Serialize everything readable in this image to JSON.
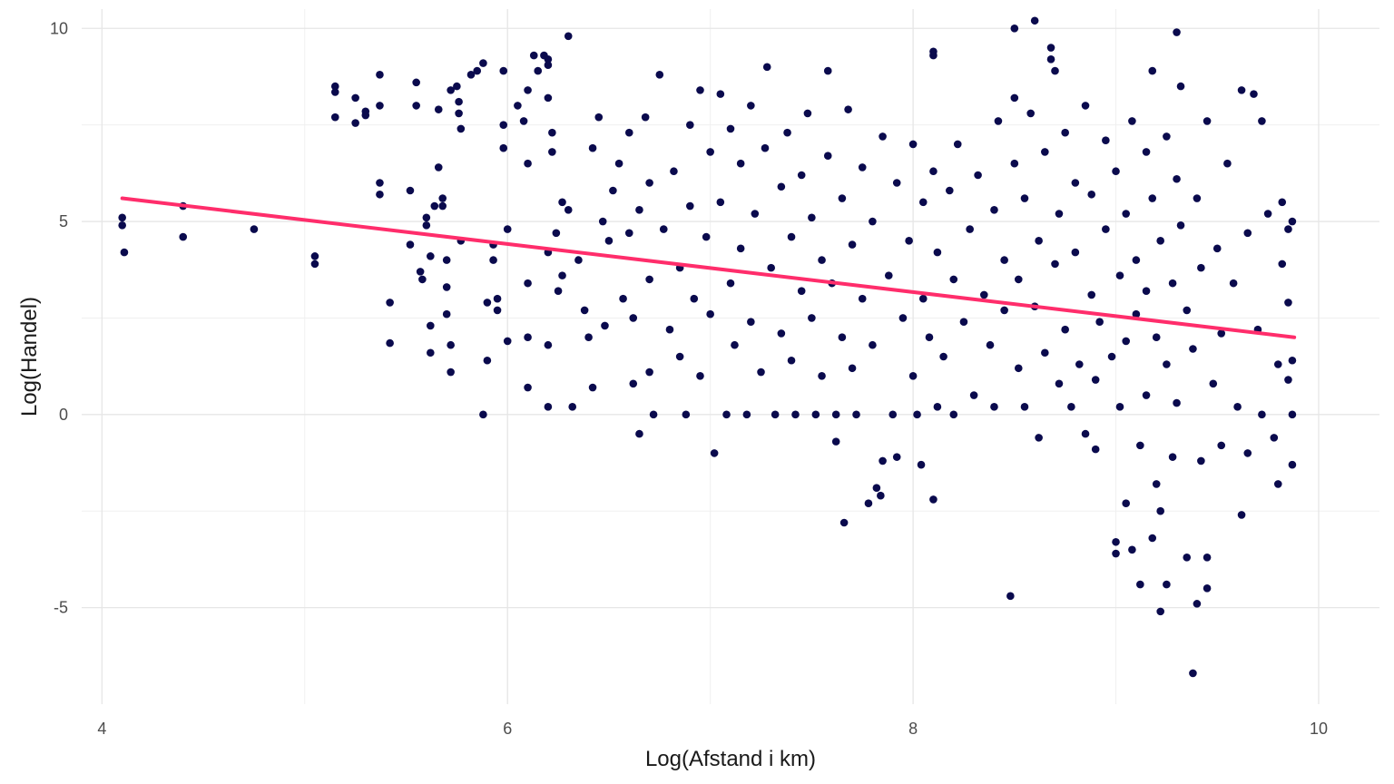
{
  "chart_data": {
    "type": "scatter",
    "title": "",
    "xlabel": "Log(Afstand i km)",
    "ylabel": "Log(Handel)",
    "xlim": [
      3.9,
      10.3
    ],
    "ylim": [
      -7.5,
      10.5
    ],
    "x_ticks": [
      4,
      6,
      8,
      10
    ],
    "y_ticks": [
      -5,
      0,
      5,
      10
    ],
    "x_tick_labels": [
      "4",
      "6",
      "8",
      "10"
    ],
    "y_tick_labels": [
      "-5",
      "0",
      "5",
      "10"
    ],
    "grid": true,
    "legend": "none",
    "point_color": "#0a0a4d",
    "fit_color": "#ff2d6b",
    "fit_line": {
      "x": [
        4.1,
        9.88
      ],
      "y": [
        5.6,
        2.0
      ]
    },
    "points": [
      [
        4.1,
        5.1
      ],
      [
        4.1,
        4.9
      ],
      [
        4.11,
        4.2
      ],
      [
        4.4,
        5.4
      ],
      [
        4.4,
        4.6
      ],
      [
        4.75,
        4.8
      ],
      [
        5.05,
        4.1
      ],
      [
        5.05,
        3.9
      ],
      [
        5.15,
        8.5
      ],
      [
        5.15,
        8.35
      ],
      [
        5.15,
        7.7
      ],
      [
        5.25,
        8.2
      ],
      [
        5.25,
        7.55
      ],
      [
        5.3,
        7.75
      ],
      [
        5.3,
        7.85
      ],
      [
        5.37,
        8.8
      ],
      [
        5.37,
        8.0
      ],
      [
        5.37,
        6.0
      ],
      [
        5.37,
        5.7
      ],
      [
        5.42,
        2.9
      ],
      [
        5.42,
        1.85
      ],
      [
        5.52,
        5.8
      ],
      [
        5.52,
        4.4
      ],
      [
        5.55,
        8.6
      ],
      [
        5.55,
        8.0
      ],
      [
        5.57,
        3.7
      ],
      [
        5.58,
        3.5
      ],
      [
        5.6,
        5.1
      ],
      [
        5.6,
        4.9
      ],
      [
        5.62,
        4.1
      ],
      [
        5.62,
        2.3
      ],
      [
        5.62,
        1.6
      ],
      [
        5.64,
        5.4
      ],
      [
        5.66,
        7.9
      ],
      [
        5.66,
        6.4
      ],
      [
        5.68,
        5.6
      ],
      [
        5.68,
        5.4
      ],
      [
        5.7,
        3.3
      ],
      [
        5.7,
        2.6
      ],
      [
        5.7,
        4.0
      ],
      [
        5.72,
        1.8
      ],
      [
        5.72,
        1.1
      ],
      [
        5.72,
        8.4
      ],
      [
        5.75,
        8.5
      ],
      [
        5.76,
        7.8
      ],
      [
        5.76,
        8.1
      ],
      [
        5.77,
        7.4
      ],
      [
        5.77,
        4.5
      ],
      [
        5.82,
        8.8
      ],
      [
        5.85,
        8.9
      ],
      [
        5.88,
        9.1
      ],
      [
        5.88,
        0.0
      ],
      [
        5.9,
        2.9
      ],
      [
        5.9,
        1.4
      ],
      [
        5.93,
        4.4
      ],
      [
        5.93,
        4.0
      ],
      [
        5.95,
        3.0
      ],
      [
        5.95,
        2.7
      ],
      [
        5.98,
        8.9
      ],
      [
        5.98,
        6.9
      ],
      [
        5.98,
        7.5
      ],
      [
        6.0,
        4.8
      ],
      [
        6.0,
        1.9
      ],
      [
        6.05,
        8.0
      ],
      [
        6.08,
        7.6
      ],
      [
        6.1,
        8.4
      ],
      [
        6.1,
        6.5
      ],
      [
        6.1,
        3.4
      ],
      [
        6.1,
        2.0
      ],
      [
        6.1,
        0.7
      ],
      [
        6.13,
        9.3
      ],
      [
        6.15,
        8.9
      ],
      [
        6.18,
        9.3
      ],
      [
        6.2,
        9.2
      ],
      [
        6.2,
        9.05
      ],
      [
        6.2,
        8.2
      ],
      [
        6.2,
        4.2
      ],
      [
        6.2,
        1.8
      ],
      [
        6.2,
        0.2
      ],
      [
        6.22,
        7.3
      ],
      [
        6.22,
        6.8
      ],
      [
        6.24,
        4.7
      ],
      [
        6.25,
        3.2
      ],
      [
        6.27,
        5.5
      ],
      [
        6.27,
        3.6
      ],
      [
        6.3,
        9.8
      ],
      [
        6.3,
        5.3
      ],
      [
        6.32,
        0.2
      ],
      [
        6.35,
        4.0
      ],
      [
        6.38,
        2.7
      ],
      [
        6.4,
        2.0
      ],
      [
        6.42,
        6.9
      ],
      [
        6.42,
        0.7
      ],
      [
        6.45,
        7.7
      ],
      [
        6.47,
        5.0
      ],
      [
        6.48,
        2.3
      ],
      [
        6.5,
        4.5
      ],
      [
        6.52,
        5.8
      ],
      [
        6.55,
        6.5
      ],
      [
        6.57,
        3.0
      ],
      [
        6.6,
        7.3
      ],
      [
        6.6,
        4.7
      ],
      [
        6.62,
        2.5
      ],
      [
        6.62,
        0.8
      ],
      [
        6.65,
        5.3
      ],
      [
        6.65,
        -0.5
      ],
      [
        6.68,
        7.7
      ],
      [
        6.7,
        6.0
      ],
      [
        6.7,
        3.5
      ],
      [
        6.7,
        1.1
      ],
      [
        6.72,
        0.0
      ],
      [
        6.75,
        8.8
      ],
      [
        6.77,
        4.8
      ],
      [
        6.8,
        2.2
      ],
      [
        6.82,
        6.3
      ],
      [
        6.85,
        3.8
      ],
      [
        6.85,
        1.5
      ],
      [
        6.88,
        0.0
      ],
      [
        6.9,
        7.5
      ],
      [
        6.9,
        5.4
      ],
      [
        6.92,
        3.0
      ],
      [
        6.95,
        8.4
      ],
      [
        6.95,
        1.0
      ],
      [
        6.98,
        4.6
      ],
      [
        7.0,
        6.8
      ],
      [
        7.0,
        2.6
      ],
      [
        7.02,
        -1.0
      ],
      [
        7.05,
        8.3
      ],
      [
        7.05,
        5.5
      ],
      [
        7.08,
        0.0
      ],
      [
        7.1,
        7.4
      ],
      [
        7.1,
        3.4
      ],
      [
        7.12,
        1.8
      ],
      [
        7.15,
        6.5
      ],
      [
        7.15,
        4.3
      ],
      [
        7.18,
        0.0
      ],
      [
        7.2,
        8.0
      ],
      [
        7.2,
        2.4
      ],
      [
        7.22,
        5.2
      ],
      [
        7.25,
        1.1
      ],
      [
        7.27,
        6.9
      ],
      [
        7.28,
        9.0
      ],
      [
        7.3,
        3.8
      ],
      [
        7.32,
        0.0
      ],
      [
        7.35,
        5.9
      ],
      [
        7.35,
        2.1
      ],
      [
        7.38,
        7.3
      ],
      [
        7.4,
        4.6
      ],
      [
        7.4,
        1.4
      ],
      [
        7.42,
        0.0
      ],
      [
        7.45,
        6.2
      ],
      [
        7.45,
        3.2
      ],
      [
        7.48,
        7.8
      ],
      [
        7.5,
        5.1
      ],
      [
        7.5,
        2.5
      ],
      [
        7.52,
        0.0
      ],
      [
        7.55,
        4.0
      ],
      [
        7.55,
        1.0
      ],
      [
        7.58,
        8.9
      ],
      [
        7.58,
        6.7
      ],
      [
        7.6,
        3.4
      ],
      [
        7.62,
        0.0
      ],
      [
        7.62,
        -0.7
      ],
      [
        7.65,
        5.6
      ],
      [
        7.65,
        2.0
      ],
      [
        7.66,
        -2.8
      ],
      [
        7.68,
        7.9
      ],
      [
        7.7,
        4.4
      ],
      [
        7.7,
        1.2
      ],
      [
        7.72,
        0.0
      ],
      [
        7.75,
        6.4
      ],
      [
        7.75,
        3.0
      ],
      [
        7.78,
        -2.3
      ],
      [
        7.8,
        5.0
      ],
      [
        7.8,
        1.8
      ],
      [
        7.82,
        -1.9
      ],
      [
        7.84,
        -2.1
      ],
      [
        7.85,
        7.2
      ],
      [
        7.85,
        -1.2
      ],
      [
        7.88,
        3.6
      ],
      [
        7.9,
        0.0
      ],
      [
        7.92,
        -1.1
      ],
      [
        7.92,
        6.0
      ],
      [
        7.95,
        2.5
      ],
      [
        7.98,
        4.5
      ],
      [
        8.0,
        7.0
      ],
      [
        8.0,
        1.0
      ],
      [
        8.02,
        0.0
      ],
      [
        8.04,
        -1.3
      ],
      [
        8.05,
        5.5
      ],
      [
        8.05,
        3.0
      ],
      [
        8.08,
        2.0
      ],
      [
        8.1,
        9.4
      ],
      [
        8.1,
        9.3
      ],
      [
        8.1,
        6.3
      ],
      [
        8.1,
        -2.2
      ],
      [
        8.12,
        4.2
      ],
      [
        8.12,
        0.2
      ],
      [
        8.15,
        1.5
      ],
      [
        8.18,
        5.8
      ],
      [
        8.2,
        3.5
      ],
      [
        8.2,
        0.0
      ],
      [
        8.22,
        7.0
      ],
      [
        8.25,
        2.4
      ],
      [
        8.28,
        4.8
      ],
      [
        8.3,
        0.5
      ],
      [
        8.32,
        6.2
      ],
      [
        8.35,
        3.1
      ],
      [
        8.38,
        1.8
      ],
      [
        8.4,
        5.3
      ],
      [
        8.4,
        0.2
      ],
      [
        8.42,
        7.6
      ],
      [
        8.45,
        2.7
      ],
      [
        8.45,
        4.0
      ],
      [
        8.48,
        -4.7
      ],
      [
        8.5,
        10.0
      ],
      [
        8.5,
        8.2
      ],
      [
        8.5,
        6.5
      ],
      [
        8.52,
        3.5
      ],
      [
        8.52,
        1.2
      ],
      [
        8.55,
        0.2
      ],
      [
        8.55,
        5.6
      ],
      [
        8.58,
        7.8
      ],
      [
        8.6,
        10.2
      ],
      [
        8.6,
        2.8
      ],
      [
        8.62,
        4.5
      ],
      [
        8.62,
        -0.6
      ],
      [
        8.65,
        6.8
      ],
      [
        8.65,
        1.6
      ],
      [
        8.68,
        9.5
      ],
      [
        8.68,
        9.2
      ],
      [
        8.7,
        8.9
      ],
      [
        8.7,
        3.9
      ],
      [
        8.72,
        0.8
      ],
      [
        8.72,
        5.2
      ],
      [
        8.75,
        7.3
      ],
      [
        8.75,
        2.2
      ],
      [
        8.78,
        0.2
      ],
      [
        8.8,
        6.0
      ],
      [
        8.8,
        4.2
      ],
      [
        8.82,
        1.3
      ],
      [
        8.85,
        -0.5
      ],
      [
        8.85,
        8.0
      ],
      [
        8.88,
        3.1
      ],
      [
        8.88,
        5.7
      ],
      [
        8.9,
        0.9
      ],
      [
        8.9,
        -0.9
      ],
      [
        8.92,
        2.4
      ],
      [
        8.95,
        7.1
      ],
      [
        8.95,
        4.8
      ],
      [
        8.98,
        1.5
      ],
      [
        9.0,
        -3.3
      ],
      [
        9.0,
        -3.6
      ],
      [
        9.0,
        6.3
      ],
      [
        9.02,
        3.6
      ],
      [
        9.02,
        0.2
      ],
      [
        9.05,
        5.2
      ],
      [
        9.05,
        1.9
      ],
      [
        9.05,
        -2.3
      ],
      [
        9.08,
        -3.5
      ],
      [
        9.08,
        7.6
      ],
      [
        9.1,
        4.0
      ],
      [
        9.1,
        2.6
      ],
      [
        9.12,
        -0.8
      ],
      [
        9.12,
        -4.4
      ],
      [
        9.15,
        6.8
      ],
      [
        9.15,
        3.2
      ],
      [
        9.15,
        0.5
      ],
      [
        9.18,
        8.9
      ],
      [
        9.18,
        5.6
      ],
      [
        9.18,
        -3.2
      ],
      [
        9.2,
        2.0
      ],
      [
        9.2,
        -1.8
      ],
      [
        9.22,
        4.5
      ],
      [
        9.22,
        -5.1
      ],
      [
        9.22,
        -2.5
      ],
      [
        9.25,
        7.2
      ],
      [
        9.25,
        1.3
      ],
      [
        9.25,
        -4.4
      ],
      [
        9.28,
        3.4
      ],
      [
        9.28,
        -1.1
      ],
      [
        9.3,
        9.9
      ],
      [
        9.3,
        6.1
      ],
      [
        9.3,
        0.3
      ],
      [
        9.32,
        8.5
      ],
      [
        9.32,
        4.9
      ],
      [
        9.35,
        2.7
      ],
      [
        9.35,
        -3.7
      ],
      [
        9.38,
        -6.7
      ],
      [
        9.38,
        1.7
      ],
      [
        9.4,
        5.6
      ],
      [
        9.4,
        -4.9
      ],
      [
        9.42,
        3.8
      ],
      [
        9.42,
        -1.2
      ],
      [
        9.45,
        -4.5
      ],
      [
        9.45,
        -3.7
      ],
      [
        9.45,
        7.6
      ],
      [
        9.48,
        0.8
      ],
      [
        9.5,
        4.3
      ],
      [
        9.52,
        2.1
      ],
      [
        9.52,
        -0.8
      ],
      [
        9.55,
        6.5
      ],
      [
        9.58,
        3.4
      ],
      [
        9.6,
        0.2
      ],
      [
        9.62,
        -2.6
      ],
      [
        9.62,
        8.4
      ],
      [
        9.65,
        4.7
      ],
      [
        9.65,
        -1.0
      ],
      [
        9.68,
        8.3
      ],
      [
        9.7,
        2.2
      ],
      [
        9.72,
        7.6
      ],
      [
        9.72,
        0.0
      ],
      [
        9.75,
        5.2
      ],
      [
        9.78,
        -0.6
      ],
      [
        9.8,
        1.3
      ],
      [
        9.8,
        -1.8
      ],
      [
        9.82,
        3.9
      ],
      [
        9.82,
        5.5
      ],
      [
        9.85,
        4.8
      ],
      [
        9.85,
        2.9
      ],
      [
        9.85,
        0.9
      ],
      [
        9.87,
        5.0
      ],
      [
        9.87,
        1.4
      ],
      [
        9.87,
        0.0
      ],
      [
        9.87,
        -1.3
      ]
    ]
  }
}
